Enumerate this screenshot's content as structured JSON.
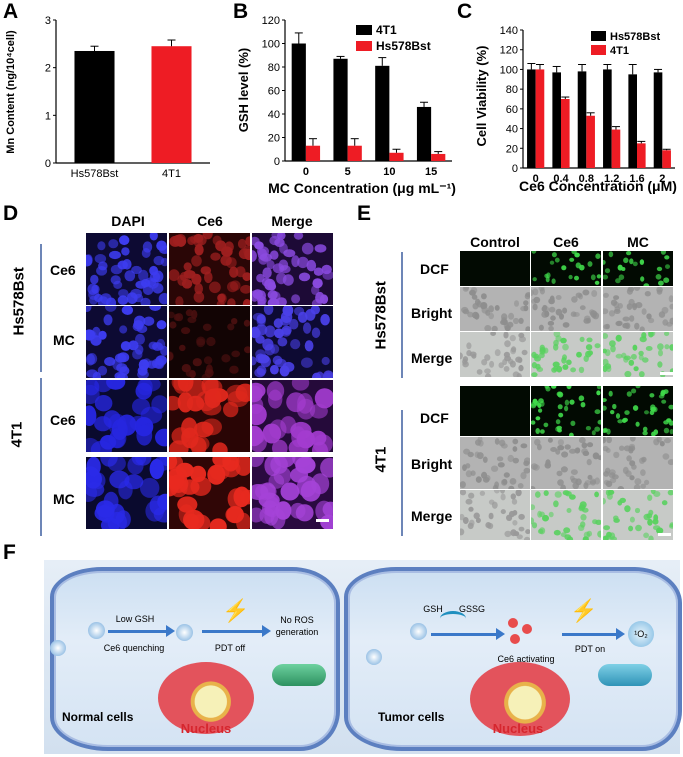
{
  "panels": {
    "A": "A",
    "B": "B",
    "C": "C",
    "D": "D",
    "E": "E",
    "F": "F"
  },
  "chart_data": [
    {
      "type": "bar",
      "panel": "A",
      "categories": [
        "Hs578Bst",
        "4T1"
      ],
      "values": [
        2.35,
        2.45
      ],
      "errors": [
        0.1,
        0.13
      ],
      "colors": [
        "#000000",
        "#ee1c24"
      ],
      "ylabel": "Mn Content (ng/10⁴cell)",
      "ylim": [
        0,
        3
      ],
      "yticks": [
        0,
        1,
        2,
        3
      ]
    },
    {
      "type": "bar",
      "panel": "B",
      "categories": [
        "0",
        "5",
        "10",
        "15"
      ],
      "series": [
        {
          "name": "4T1",
          "color": "#000000",
          "values": [
            100,
            87,
            81,
            46
          ],
          "errors": [
            9,
            2,
            7,
            4
          ]
        },
        {
          "name": "Hs578Bst",
          "color": "#ee1c24",
          "values": [
            13,
            13,
            7,
            6
          ],
          "errors": [
            6,
            6,
            3,
            2
          ]
        }
      ],
      "xlabel": "MC Concentration (μg mL⁻¹)",
      "ylabel": "GSH level (%)",
      "ylim": [
        0,
        120
      ],
      "yticks": [
        0,
        20,
        40,
        60,
        80,
        100,
        120
      ],
      "legend": "top-right"
    },
    {
      "type": "bar",
      "panel": "C",
      "categories": [
        "0",
        "0.4",
        "0.8",
        "1.2",
        "1.6",
        "2"
      ],
      "series": [
        {
          "name": "Hs578Bst",
          "color": "#000000",
          "values": [
            100,
            97,
            98,
            100,
            95,
            97
          ],
          "errors": [
            6,
            6,
            7,
            5,
            10,
            3
          ]
        },
        {
          "name": "4T1",
          "color": "#ee1c24",
          "values": [
            100,
            70,
            53,
            39,
            25,
            18
          ],
          "errors": [
            5,
            2,
            3,
            3,
            2,
            1
          ]
        }
      ],
      "xlabel": "Ce6 Concentration (μM)",
      "ylabel": "Cell Viability (%)",
      "ylim": [
        0,
        140
      ],
      "yticks": [
        0,
        20,
        40,
        60,
        80,
        100,
        120,
        140
      ],
      "legend": "top-right"
    }
  ],
  "panelD": {
    "columns": [
      "DAPI",
      "Ce6",
      "Merge"
    ],
    "groups": [
      "Hs578Bst",
      "4T1"
    ],
    "rows": [
      "Ce6",
      "MC",
      "Ce6",
      "MC"
    ]
  },
  "panelE": {
    "columns": [
      "Control",
      "Ce6",
      "MC"
    ],
    "groups": [
      "Hs578Bst",
      "4T1"
    ],
    "rows": [
      "DCF",
      "Bright",
      "Merge",
      "DCF",
      "Bright",
      "Merge"
    ]
  },
  "panelF": {
    "left": {
      "low_gsh": "Low GSH",
      "ce6_quenching": "Ce6 quenching",
      "pdt_off": "PDT off",
      "no_ros": "No ROS",
      "generation": "generation",
      "nucleus": "Nucleus",
      "cell_label": "Normal cells"
    },
    "right": {
      "gsh": "GSH",
      "gssg": "GSSG",
      "ce6_activating": "Ce6 activating",
      "pdt_on": "PDT on",
      "singlet_oxygen": "¹O₂",
      "nucleus": "Nucleus",
      "cell_label": "Tumor cells"
    }
  },
  "colors": {
    "black_bar": "#000000",
    "red_bar": "#ee1c24",
    "cell_membrane": "#5c7fc0"
  }
}
